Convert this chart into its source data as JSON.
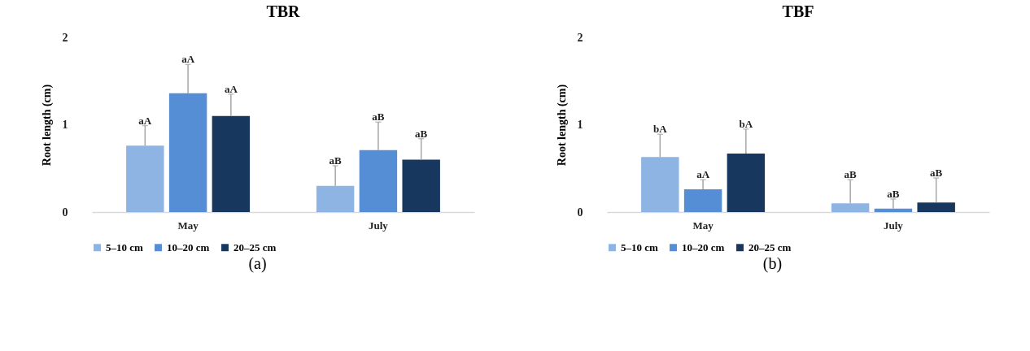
{
  "chart_data": [
    {
      "type": "bar",
      "title": "TBR",
      "ylabel": "Root length (cm)",
      "categories": [
        "May",
        "July"
      ],
      "ylim": [
        0,
        2
      ],
      "yticks": [
        0,
        1,
        2
      ],
      "grid": false,
      "legend": "bottom",
      "annotations": [
        "(a)"
      ],
      "series": [
        {
          "name": "5–10 cm",
          "color": "#8eb4e3",
          "values": [
            0.76,
            0.3
          ],
          "errors": [
            [
              0.76,
              0.99
            ],
            [
              0.3,
              0.53
            ]
          ],
          "value_labels": [
            "aA",
            "aB"
          ]
        },
        {
          "name": "10–20 cm",
          "color": "#558ed5",
          "values": [
            1.36,
            0.71
          ],
          "errors": [
            [
              1.36,
              1.69
            ],
            [
              0.71,
              1.03
            ]
          ],
          "value_labels": [
            "aA",
            "aB"
          ]
        },
        {
          "name": "20–25 cm",
          "color": "#17375e",
          "values": [
            1.1,
            0.6
          ],
          "errors": [
            [
              1.1,
              1.35
            ],
            [
              0.6,
              0.84
            ]
          ],
          "value_labels": [
            "aA",
            "aB"
          ]
        }
      ]
    },
    {
      "type": "bar",
      "title": "TBF",
      "ylabel": "Root length (cm)",
      "categories": [
        "May",
        "July"
      ],
      "ylim": [
        0,
        2
      ],
      "yticks": [
        0,
        1,
        2
      ],
      "grid": false,
      "legend": "bottom",
      "annotations": [
        "(b)"
      ],
      "series": [
        {
          "name": "5–10 cm",
          "color": "#8eb4e3",
          "values": [
            0.63,
            0.1
          ],
          "errors": [
            [
              0.63,
              0.89
            ],
            [
              0.1,
              0.37
            ]
          ],
          "value_labels": [
            "bA",
            "aB"
          ]
        },
        {
          "name": "10–20 cm",
          "color": "#558ed5",
          "values": [
            0.26,
            0.04
          ],
          "errors": [
            [
              0.26,
              0.37
            ],
            [
              0.04,
              0.15
            ]
          ],
          "value_labels": [
            "aA",
            "aB"
          ]
        },
        {
          "name": "20–25 cm",
          "color": "#17375e",
          "values": [
            0.67,
            0.11
          ],
          "errors": [
            [
              0.67,
              0.95
            ],
            [
              0.11,
              0.39
            ]
          ],
          "value_labels": [
            "bA",
            "aB"
          ]
        }
      ]
    }
  ]
}
